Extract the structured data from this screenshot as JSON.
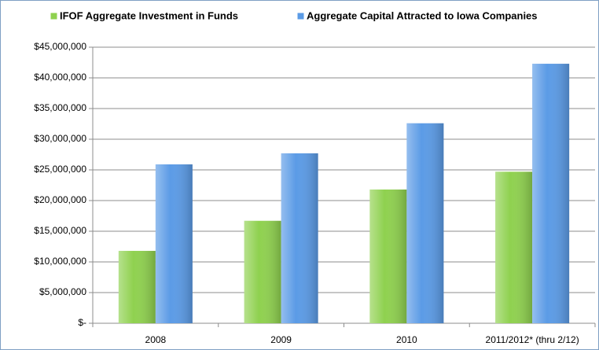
{
  "chart_data": {
    "type": "bar",
    "categories": [
      "2008",
      "2009",
      "2010",
      "2011/2012* (thru 2/12)"
    ],
    "series": [
      {
        "name": "IFOF Aggregate Investment in Funds",
        "color": "#8fd14f",
        "values": [
          11800000,
          16700000,
          21800000,
          24700000
        ]
      },
      {
        "name": "Aggregate Capital Attracted to Iowa Companies",
        "color": "#5b9be6",
        "values": [
          25900000,
          27700000,
          32600000,
          42300000
        ]
      }
    ],
    "ylim": [
      0,
      45000000
    ],
    "yticks": [
      {
        "value": 0,
        "label": "$-"
      },
      {
        "value": 5000000,
        "label": "$5,000,000"
      },
      {
        "value": 10000000,
        "label": "$10,000,000"
      },
      {
        "value": 15000000,
        "label": "$15,000,000"
      },
      {
        "value": 20000000,
        "label": "$20,000,000"
      },
      {
        "value": 25000000,
        "label": "$25,000,000"
      },
      {
        "value": 30000000,
        "label": "$30,000,000"
      },
      {
        "value": 35000000,
        "label": "$35,000,000"
      },
      {
        "value": 40000000,
        "label": "$40,000,000"
      },
      {
        "value": 45000000,
        "label": "$45,000,000"
      }
    ],
    "grid": true,
    "legend": "top"
  }
}
